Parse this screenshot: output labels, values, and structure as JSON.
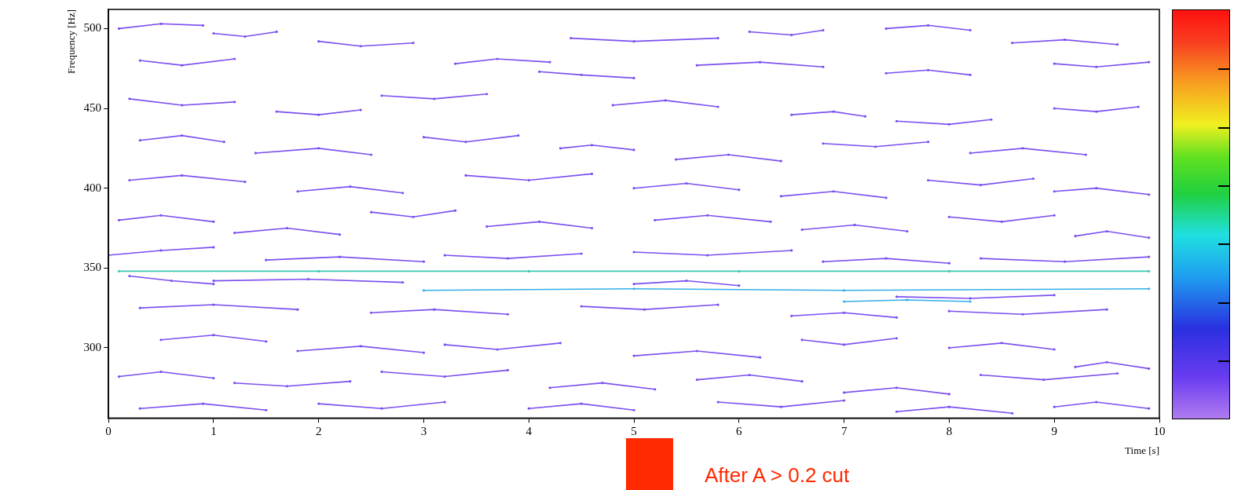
{
  "chart_data": {
    "type": "scatter",
    "x_label": "Time [s]",
    "y_label": "Frequency [Hz]",
    "annotation": "After A > 0.2 cut",
    "xlim": [
      0,
      10
    ],
    "xticks": [
      0,
      1,
      2,
      3,
      4,
      5,
      6,
      7,
      8,
      9,
      10
    ],
    "ylim": [
      256,
      512
    ],
    "yticks": [
      300,
      350,
      400,
      450,
      500
    ],
    "grid": false,
    "series": [
      {
        "color": "#7b4ff0",
        "marker": "circle",
        "line_style": "solid",
        "x": [
          0.1,
          0.5,
          0.9,
          0.9,
          1.0,
          1.3,
          1.6,
          1.6,
          2.0,
          2.4,
          2.9,
          2.9,
          4.4,
          5.0,
          5.8,
          5.8,
          6.1,
          6.5,
          6.8,
          6.8,
          7.4,
          7.8,
          8.2,
          8.2,
          8.6,
          9.1,
          9.6,
          9.6,
          0.3,
          0.7,
          1.2,
          1.2,
          3.3,
          3.7,
          4.2,
          4.2,
          4.1,
          4.5,
          5.0,
          5.0,
          5.6,
          6.2,
          6.8,
          6.8,
          7.4,
          7.8,
          8.2,
          8.2,
          9.0,
          9.4,
          9.9,
          9.9,
          0.2,
          0.7,
          1.2,
          1.2,
          1.6,
          2.0,
          2.4,
          2.4,
          2.6,
          3.1,
          3.6,
          3.6,
          4.8,
          5.3,
          5.8,
          5.8,
          6.5,
          6.9,
          7.2,
          7.2,
          7.5,
          8.0,
          8.4,
          8.4,
          9.0,
          9.4,
          9.8,
          9.8,
          0.3,
          0.7,
          1.1,
          1.1,
          1.4,
          2.0,
          2.5,
          2.5,
          3.0,
          3.4,
          3.9,
          3.9,
          4.3,
          4.6,
          5.0,
          5.0,
          5.4,
          5.9,
          6.4,
          6.4,
          6.8,
          7.3,
          7.8,
          7.8,
          8.2,
          8.7,
          9.3,
          9.3,
          0.2,
          0.7,
          1.3,
          1.3,
          1.8,
          2.3,
          2.8,
          2.8,
          3.4,
          4.0,
          4.6,
          4.6,
          5.0,
          5.5,
          6.0,
          6.0,
          6.4,
          6.9,
          7.4,
          7.4,
          7.8,
          8.3,
          8.8,
          8.8,
          9.0,
          9.4,
          9.9,
          9.9,
          0.1,
          0.5,
          1.0,
          1.0,
          1.2,
          1.7,
          2.2,
          2.2,
          2.5,
          2.9,
          3.3,
          3.3,
          3.6,
          4.1,
          4.6,
          4.6,
          5.2,
          5.7,
          6.3,
          6.3,
          6.6,
          7.1,
          7.6,
          7.6,
          8.0,
          8.5,
          9.0,
          9.0,
          9.2,
          9.5,
          9.9,
          9.9,
          0.0,
          0.5,
          1.0,
          1.0,
          1.5,
          2.2,
          3.0,
          3.0,
          3.2,
          3.8,
          4.5,
          4.5,
          5.0,
          5.7,
          6.5,
          6.5,
          6.8,
          7.4,
          8.0,
          8.0,
          8.3,
          9.1,
          9.9,
          9.9,
          0.2,
          0.6,
          1.0,
          1.0,
          1.0,
          1.9,
          2.8,
          2.8,
          5.0,
          5.5,
          6.0,
          6.0,
          7.5,
          8.2,
          9.0,
          9.0,
          0.3,
          1.0,
          1.8,
          1.8,
          2.5,
          3.1,
          3.8,
          3.8,
          4.5,
          5.1,
          5.8,
          5.8,
          6.5,
          7.0,
          7.5,
          7.5,
          8.0,
          8.7,
          9.5,
          9.5,
          0.5,
          1.0,
          1.5,
          1.5,
          1.8,
          2.4,
          3.0,
          3.0,
          3.2,
          3.7,
          4.3,
          4.3,
          5.0,
          5.6,
          6.2,
          6.2,
          6.6,
          7.0,
          7.5,
          7.5,
          8.0,
          8.5,
          9.0,
          9.0,
          9.2,
          9.5,
          9.9,
          9.9,
          0.1,
          0.5,
          1.0,
          1.0,
          1.2,
          1.7,
          2.3,
          2.3,
          2.6,
          3.2,
          3.8,
          3.8,
          4.2,
          4.7,
          5.2,
          5.2,
          5.6,
          6.1,
          6.6,
          6.6,
          7.0,
          7.5,
          8.0,
          8.0,
          8.3,
          8.9,
          9.6,
          9.6,
          0.3,
          0.9,
          1.5,
          1.5,
          2.0,
          2.6,
          3.2,
          3.2,
          4.0,
          4.5,
          5.0,
          5.0,
          5.8,
          6.4,
          7.0,
          7.0,
          7.5,
          8.0,
          8.6,
          8.6,
          9.0,
          9.4,
          9.9
        ],
        "values": [
          500,
          503,
          502,
          null,
          497,
          495,
          498,
          null,
          492,
          489,
          491,
          null,
          494,
          492,
          494,
          null,
          498,
          496,
          499,
          null,
          500,
          502,
          499,
          null,
          491,
          493,
          490,
          null,
          480,
          477,
          481,
          null,
          478,
          481,
          479,
          null,
          473,
          471,
          469,
          null,
          477,
          479,
          476,
          null,
          472,
          474,
          471,
          null,
          478,
          476,
          479,
          null,
          456,
          452,
          454,
          null,
          448,
          446,
          449,
          null,
          458,
          456,
          459,
          null,
          452,
          455,
          451,
          null,
          446,
          448,
          445,
          null,
          442,
          440,
          443,
          null,
          450,
          448,
          451,
          null,
          430,
          433,
          429,
          null,
          422,
          425,
          421,
          null,
          432,
          429,
          433,
          null,
          425,
          427,
          424,
          null,
          418,
          421,
          417,
          null,
          428,
          426,
          429,
          null,
          422,
          425,
          421,
          null,
          405,
          408,
          404,
          null,
          398,
          401,
          397,
          null,
          408,
          405,
          409,
          null,
          400,
          403,
          399,
          null,
          395,
          398,
          394,
          null,
          405,
          402,
          406,
          null,
          398,
          400,
          396,
          null,
          380,
          383,
          379,
          null,
          372,
          375,
          371,
          null,
          385,
          382,
          386,
          null,
          376,
          379,
          375,
          null,
          380,
          383,
          379,
          null,
          374,
          377,
          373,
          null,
          382,
          379,
          383,
          null,
          370,
          373,
          369,
          null,
          358,
          361,
          363,
          null,
          355,
          357,
          354,
          null,
          358,
          356,
          359,
          null,
          360,
          358,
          361,
          null,
          354,
          356,
          353,
          null,
          356,
          354,
          357,
          null,
          345,
          342,
          340,
          null,
          342,
          343,
          341,
          null,
          340,
          342,
          339,
          null,
          332,
          331,
          333,
          null,
          325,
          327,
          324,
          null,
          322,
          324,
          321,
          null,
          326,
          324,
          327,
          null,
          320,
          322,
          319,
          null,
          323,
          321,
          324,
          null,
          305,
          308,
          304,
          null,
          298,
          301,
          297,
          null,
          302,
          299,
          303,
          null,
          295,
          298,
          294,
          null,
          305,
          302,
          306,
          null,
          300,
          303,
          299,
          null,
          288,
          291,
          287,
          null,
          282,
          285,
          281,
          null,
          278,
          276,
          279,
          null,
          285,
          282,
          286,
          null,
          275,
          278,
          274,
          null,
          280,
          283,
          279,
          null,
          272,
          275,
          271,
          null,
          283,
          280,
          284,
          null,
          262,
          265,
          261,
          null,
          265,
          262,
          266,
          null,
          262,
          265,
          261,
          null,
          266,
          263,
          267,
          null,
          260,
          263,
          259,
          null,
          263,
          266,
          262
        ]
      },
      {
        "color": "#3cc8b4",
        "marker": "circle",
        "line_style": "solid",
        "x": [
          0.1,
          2.0,
          4.0,
          6.0,
          8.0,
          9.9
        ],
        "values": [
          348,
          348,
          348,
          348,
          348,
          348
        ]
      },
      {
        "color": "#33aee8",
        "marker": "circle",
        "line_style": "solid",
        "x": [
          3.0,
          5.0,
          7.0,
          9.9
        ],
        "values": [
          336,
          337,
          336,
          337
        ]
      },
      {
        "color": "#33aee8",
        "marker": "circle",
        "line_style": "solid",
        "x": [
          7.0,
          7.6,
          8.2
        ],
        "values": [
          329,
          330,
          329
        ]
      }
    ]
  }
}
